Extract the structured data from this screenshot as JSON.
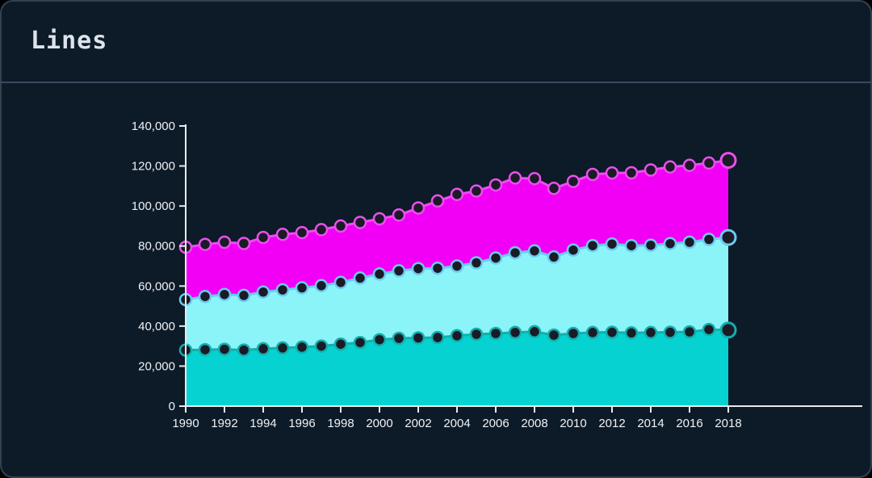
{
  "header": {
    "title": "Lines"
  },
  "colors": {
    "background": "#0D1A28",
    "card_border": "#33414F",
    "divider": "#3A4A5E",
    "axis": "#E8EAED",
    "tick_label": "#EFF2F5",
    "marker_center": "#1A1B26",
    "series_magenta_fill": "#F200F5",
    "series_magenta_line": "#EC4FEF",
    "series_cyan_fill": "#8BF4F9",
    "series_cyan_line": "#6BCBF0",
    "series_teal_fill": "#06D2D2",
    "series_teal_line": "#12AFAD"
  },
  "axes": {
    "y_labels": [
      "0",
      "20,000",
      "40,000",
      "60,000",
      "80,000",
      "100,000",
      "120,000",
      "140,000"
    ],
    "x_labels": [
      "1990",
      "1992",
      "1994",
      "1996",
      "1998",
      "2000",
      "2002",
      "2004",
      "2006",
      "2008",
      "2010",
      "2012",
      "2014",
      "2016",
      "2018"
    ]
  },
  "chart_data": {
    "type": "area",
    "variant": "overlapping-opaque-areas-with-point-markers",
    "title": "Lines",
    "xlabel": "",
    "ylabel": "",
    "grid": false,
    "legend": "none",
    "ylim": [
      0,
      140000
    ],
    "ytick_step": 20000,
    "xtick_step": 2,
    "x": [
      1990,
      1991,
      1992,
      1993,
      1994,
      1995,
      1996,
      1997,
      1998,
      1999,
      2000,
      2001,
      2002,
      2003,
      2004,
      2005,
      2006,
      2007,
      2008,
      2009,
      2010,
      2011,
      2012,
      2013,
      2014,
      2015,
      2016,
      2017,
      2018
    ],
    "series": [
      {
        "id": "top-magenta",
        "fill": "#F200F5",
        "line": "#EC4FEF",
        "values": [
          79400,
          80800,
          81900,
          81300,
          84300,
          85800,
          86700,
          88200,
          90000,
          91800,
          93600,
          95500,
          99000,
          102500,
          105800,
          107500,
          110500,
          114000,
          113700,
          108800,
          112300,
          115800,
          116500,
          116600,
          118000,
          119500,
          120300,
          121500,
          122800
        ]
      },
      {
        "id": "middle-cyan",
        "fill": "#8BF4F9",
        "line": "#6BCBF0",
        "values": [
          53200,
          54800,
          55800,
          55300,
          57000,
          58100,
          59100,
          60200,
          61800,
          64000,
          66000,
          67600,
          68700,
          68900,
          70000,
          71600,
          74000,
          76600,
          77600,
          74500,
          78000,
          80200,
          81000,
          80200,
          80400,
          81200,
          81900,
          83300,
          84300
        ]
      },
      {
        "id": "bottom-teal",
        "fill": "#06D2D2",
        "line": "#12AFAD",
        "values": [
          28000,
          28200,
          28400,
          28000,
          28700,
          29100,
          29500,
          30000,
          31000,
          31800,
          33200,
          33900,
          34100,
          34300,
          35200,
          35900,
          36300,
          36800,
          37200,
          35500,
          36300,
          36800,
          36900,
          36600,
          36800,
          36900,
          37100,
          38300,
          38000
        ]
      }
    ]
  }
}
